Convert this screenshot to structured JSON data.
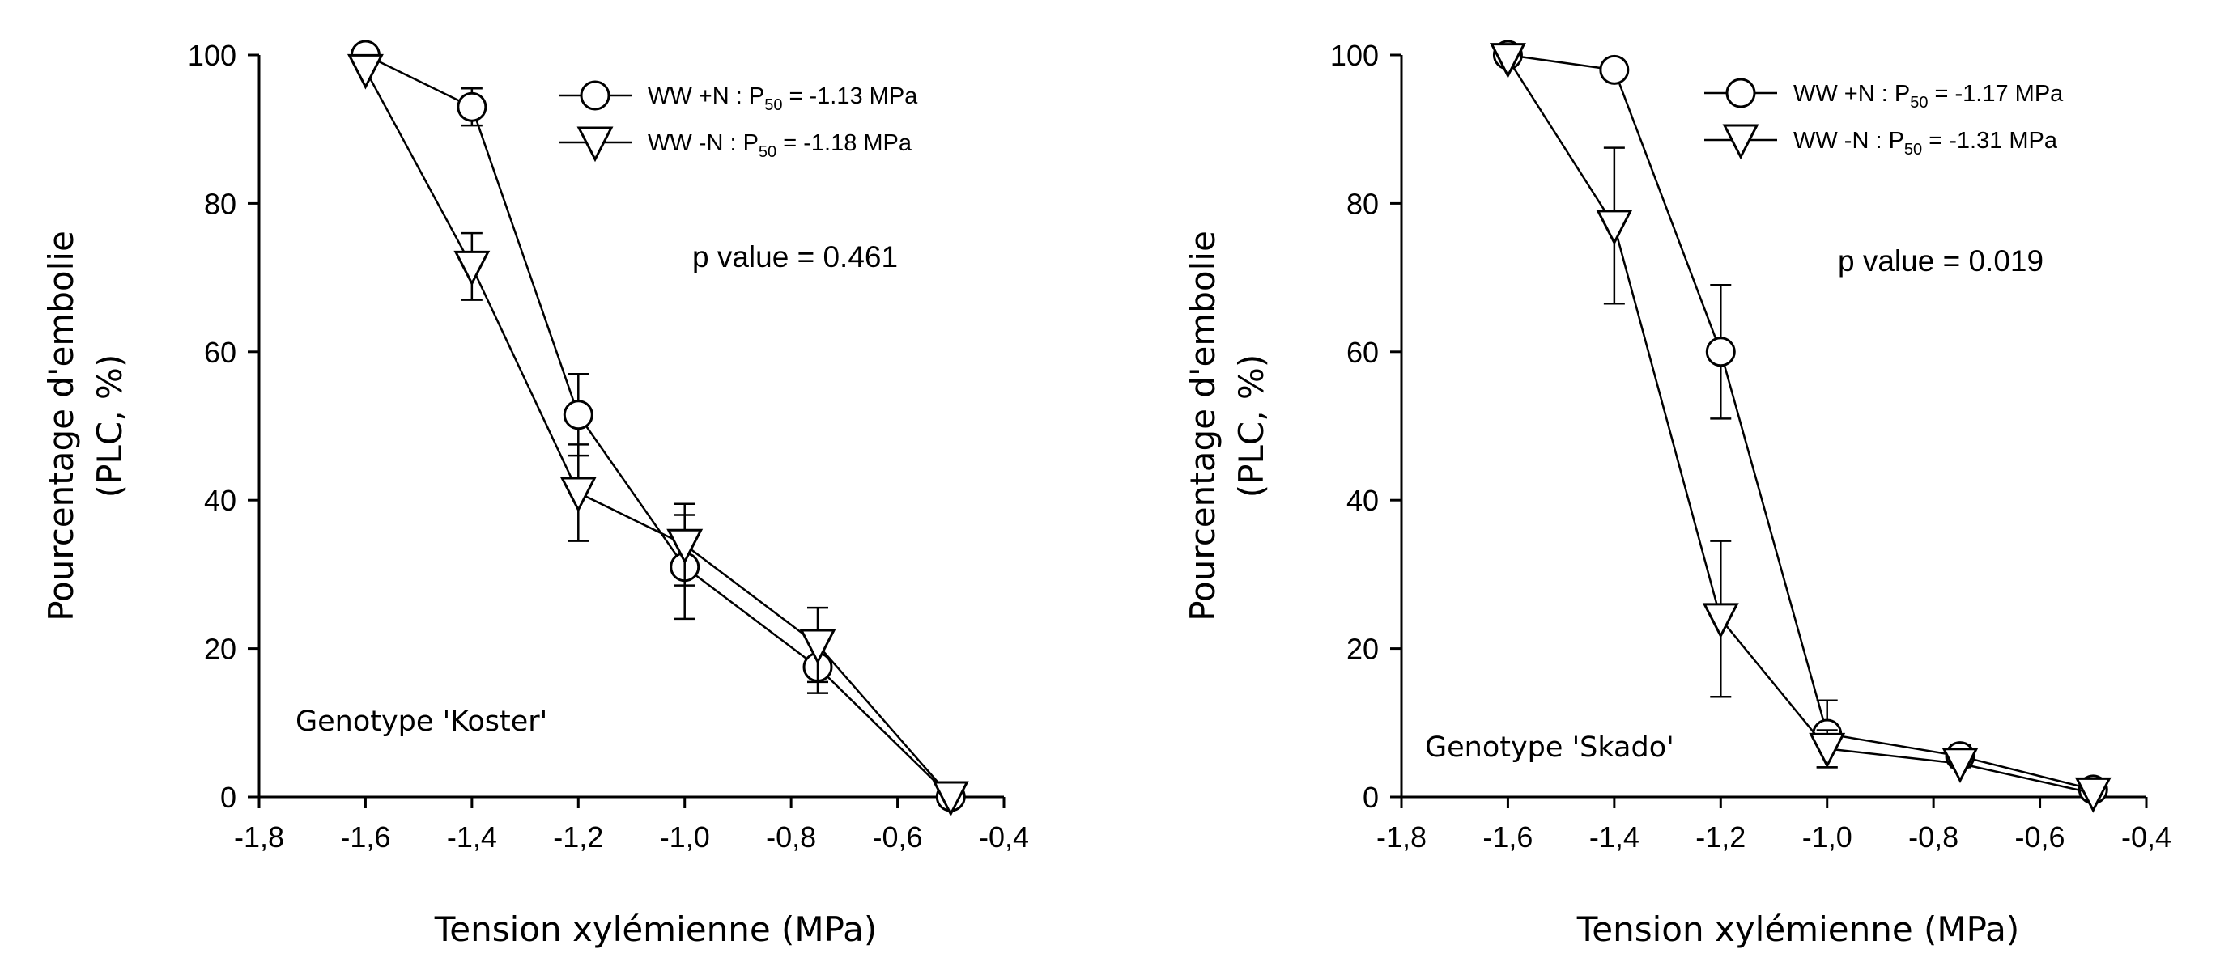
{
  "chart_data": [
    {
      "type": "line",
      "title": "",
      "xlabel": "Tension xylémienne (MPa)",
      "ylabel_line1": "Pourcentage d'embolie",
      "ylabel_line2": "(PLC, %)",
      "xlim": [
        -1.8,
        -0.4
      ],
      "ylim": [
        0,
        100
      ],
      "xticks": [
        -1.8,
        -1.6,
        -1.4,
        -1.2,
        -1.0,
        -0.8,
        -0.6,
        -0.4
      ],
      "xtick_labels": [
        "-1,8",
        "-1,6",
        "-1,4",
        "-1,2",
        "-1,0",
        "-0,8",
        "-0,6",
        "-0,4"
      ],
      "yticks": [
        0,
        20,
        40,
        60,
        80,
        100
      ],
      "ytick_labels": [
        "0",
        "20",
        "40",
        "60",
        "80",
        "100"
      ],
      "grid": false,
      "legend_position": "top-right",
      "annotation": "p value = 0.461",
      "genotype_label": "Genotype 'Koster'",
      "series": [
        {
          "name": "WW +N : P50 = -1.13 MPa",
          "legend_main": "WW +N : P",
          "legend_sub": "50",
          "legend_tail": " = -1.13 MPa",
          "marker": "circle",
          "x": [
            -1.6,
            -1.4,
            -1.2,
            -1.0,
            -0.75,
            -0.5
          ],
          "y": [
            100,
            93,
            51.5,
            31,
            17.5,
            0
          ],
          "err": [
            0,
            2.5,
            5.5,
            7,
            3.5,
            0
          ]
        },
        {
          "name": "WW -N : P50 = -1.18 MPa",
          "legend_main": "WW -N : P",
          "legend_sub": "50",
          "legend_tail": " = -1.18 MPa",
          "marker": "triangle-down",
          "x": [
            -1.6,
            -1.4,
            -1.2,
            -1.0,
            -0.75,
            -0.5
          ],
          "y": [
            98,
            71.5,
            41,
            34,
            20.5,
            0
          ],
          "err": [
            0,
            4.5,
            6.5,
            5.5,
            5,
            0
          ]
        }
      ]
    },
    {
      "type": "line",
      "title": "",
      "xlabel": "Tension xylémienne (MPa)",
      "ylabel_line1": "Pourcentage d'embolie",
      "ylabel_line2": "(PLC, %)",
      "xlim": [
        -1.8,
        -0.4
      ],
      "ylim": [
        0,
        100
      ],
      "xticks": [
        -1.8,
        -1.6,
        -1.4,
        -1.2,
        -1.0,
        -0.8,
        -0.6,
        -0.4
      ],
      "xtick_labels": [
        "-1,8",
        "-1,6",
        "-1,4",
        "-1,2",
        "-1,0",
        "-0,8",
        "-0,6",
        "-0,4"
      ],
      "yticks": [
        0,
        20,
        40,
        60,
        80,
        100
      ],
      "ytick_labels": [
        "0",
        "20",
        "40",
        "60",
        "80",
        "100"
      ],
      "grid": false,
      "legend_position": "top-right",
      "annotation": "p value = 0.019",
      "genotype_label": "Genotype 'Skado'",
      "series": [
        {
          "name": "WW +N : P50 = -1.17 MPa",
          "legend_main": "WW +N : P",
          "legend_sub": "50",
          "legend_tail": " = -1.17 MPa",
          "marker": "circle",
          "x": [
            -1.6,
            -1.4,
            -1.2,
            -1.0,
            -0.75,
            -0.5
          ],
          "y": [
            100,
            98,
            60,
            8.5,
            5.5,
            1
          ],
          "err": [
            0,
            0,
            9,
            4.5,
            1.5,
            0
          ]
        },
        {
          "name": "WW -N : P50 = -1.31 MPa",
          "legend_main": "WW -N : P",
          "legend_sub": "50",
          "legend_tail": " = -1.31 MPa",
          "marker": "triangle-down",
          "x": [
            -1.6,
            -1.4,
            -1.2,
            -1.0,
            -0.75,
            -0.5
          ],
          "y": [
            99.5,
            77,
            24,
            6.5,
            4.5,
            0.5
          ],
          "err": [
            0,
            10.5,
            10.5,
            2.5,
            0,
            0
          ]
        }
      ]
    }
  ]
}
